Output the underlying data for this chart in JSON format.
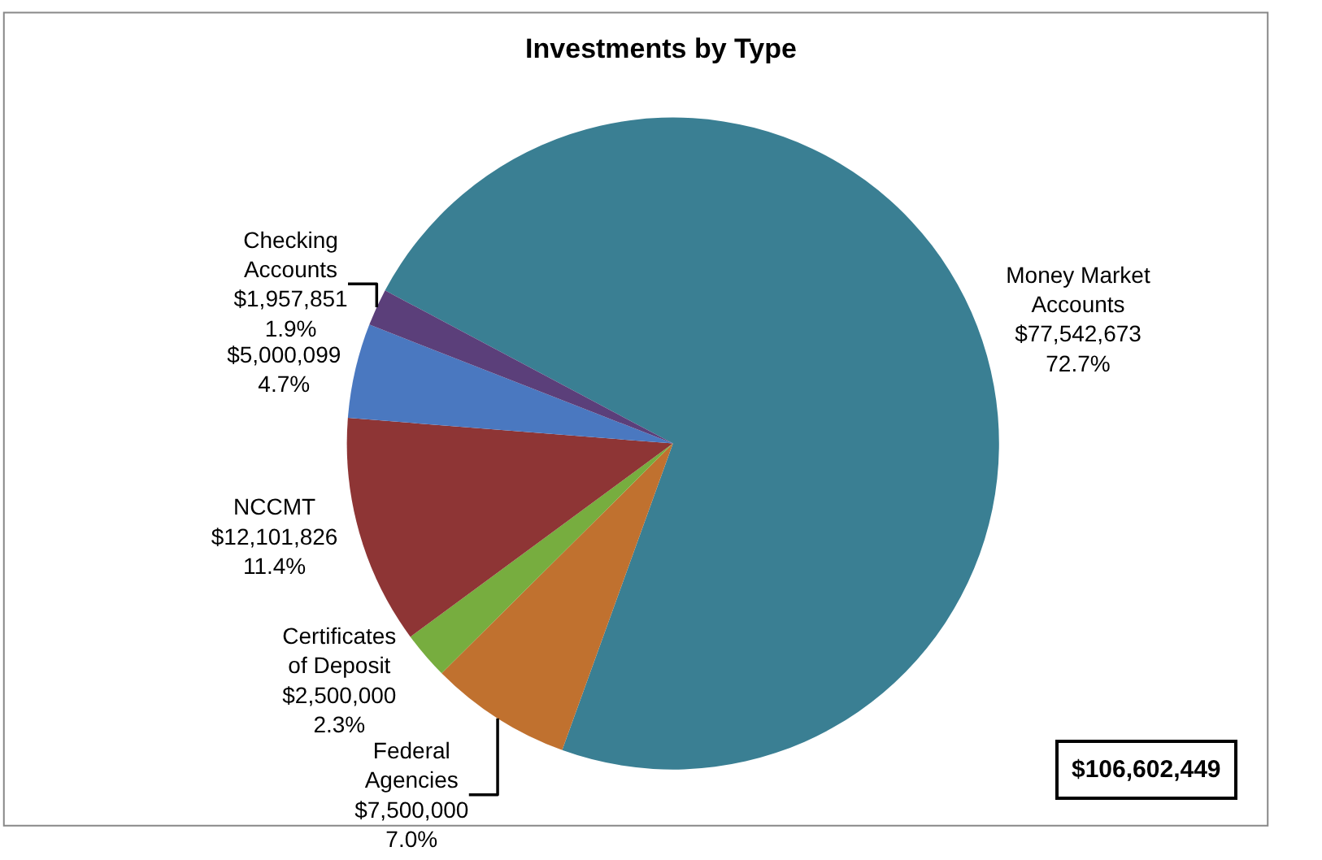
{
  "chart_data": {
    "type": "pie",
    "title": "Investments by Type",
    "categories": [
      "Money Market Accounts",
      "Federal Agencies",
      "Certificates of Deposit",
      "NCCMT",
      null,
      "Checking Accounts"
    ],
    "values": [
      77542673,
      7500000,
      2500000,
      12101826,
      5000099,
      1957851
    ],
    "value_labels": [
      "$77,542,673\n72.7%",
      "$7,500,000\n7.0%",
      "$2,500,000\n2.3%",
      "$12,101,826\n11.4%",
      "$5,000,099\n4.7%",
      "$1,957,851\n1.9%"
    ],
    "colors": [
      "#3a7f93",
      "#c0712f",
      "#77ad3f",
      "#8e3535",
      "#4a78c0",
      "#5b3f7a"
    ],
    "annotations": [
      "$106,602,449"
    ],
    "legend": false
  }
}
